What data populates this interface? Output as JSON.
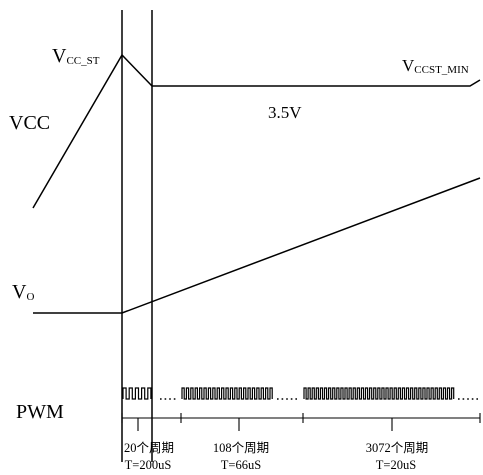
{
  "labels": {
    "vcc_st_main": "V",
    "vcc_st_sub": "CC_ST",
    "vccst_min_main": "V",
    "vccst_min_sub": "CCST_MIN",
    "voltage": "3.5V",
    "vcc": "VCC",
    "vo_main": "V",
    "vo_sub": "O",
    "pwm": "PWM"
  },
  "pwm_segments": [
    {
      "count_label": "20个周期",
      "period_label": "T=200uS"
    },
    {
      "count_label": "108个周期",
      "period_label": "T=66uS"
    },
    {
      "count_label": "3072个周期",
      "period_label": "T=20uS"
    }
  ]
}
